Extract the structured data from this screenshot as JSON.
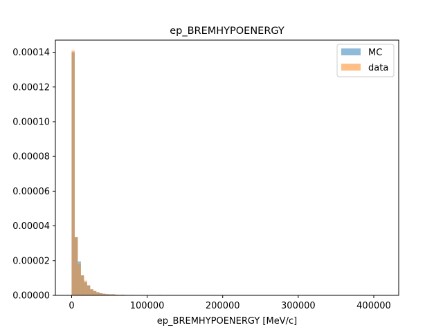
{
  "chart_data": {
    "type": "histogram",
    "title": "ep_BREMHYPOENERGY",
    "xlabel": "ep_BREMHYPOENERGY [MeV/c]",
    "ylabel": "",
    "xlim": [
      -21500,
      433000
    ],
    "ylim": [
      0,
      0.000147
    ],
    "xticks": [
      0,
      100000,
      200000,
      300000,
      400000
    ],
    "yticks": [
      0,
      2e-05,
      4e-05,
      6e-05,
      8e-05,
      0.0001,
      0.00012,
      0.00014
    ],
    "xtick_labels": [
      "0",
      "100000",
      "200000",
      "300000",
      "400000"
    ],
    "ytick_labels": [
      "0.00000",
      "0.00002",
      "0.00004",
      "0.00006",
      "0.00008",
      "0.00010",
      "0.00012",
      "0.00014"
    ],
    "bin_start": 0,
    "bin_width": 4100,
    "legend_position": "upper right",
    "series": [
      {
        "name": "MC",
        "color": "#1f77b4",
        "alpha": 0.5,
        "values": [
          0.00014,
          3.35e-05,
          1.95e-05,
          1.15e-05,
          7.5e-06,
          5.8e-06,
          3.5e-06,
          2.5e-06,
          1.8e-06,
          1.2e-06,
          9e-07,
          7e-07,
          6e-07,
          5e-07,
          4e-07,
          3e-07,
          3e-07,
          2e-07,
          2e-07,
          2e-07,
          1e-07,
          1e-07,
          1e-07,
          1e-07,
          1e-07,
          1e-07,
          1e-07,
          1e-07,
          2e-07,
          1e-07
        ]
      },
      {
        "name": "data",
        "color": "#ff7f0e",
        "alpha": 0.5,
        "values": [
          0.000141,
          3.35e-05,
          1.8e-05,
          1.15e-05,
          8.5e-06,
          5.5e-06,
          3.5e-06,
          2.5e-06,
          1.8e-06,
          1.2e-06,
          9e-07,
          7e-07,
          6e-07,
          7e-07,
          4e-07,
          3e-07,
          4e-07,
          3e-07,
          2e-07,
          3e-07,
          1e-07,
          1e-07,
          1e-07,
          1e-07,
          1e-07,
          1e-07,
          1e-07,
          1e-07,
          3e-07,
          1e-07
        ]
      }
    ]
  }
}
